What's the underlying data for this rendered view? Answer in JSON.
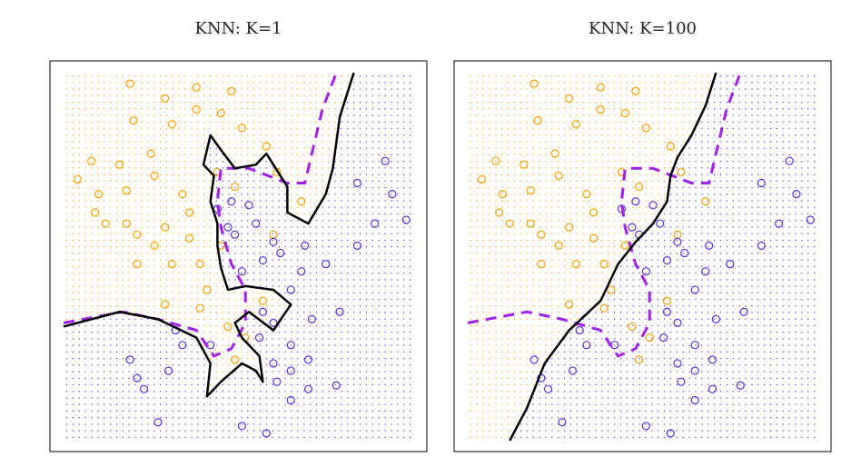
{
  "chart_data": [
    {
      "type": "scatter",
      "title": "KNN: K=1",
      "xlim": [
        0,
        100
      ],
      "ylim": [
        0,
        100
      ],
      "series": [
        {
          "color": "#f5a000",
          "x": [
            19,
            29,
            38,
            48,
            20,
            31,
            38,
            45,
            8,
            16,
            25,
            4,
            10,
            18,
            26,
            34,
            12,
            21,
            26,
            36,
            21,
            31,
            39,
            41,
            29,
            47,
            49,
            57,
            61,
            68,
            51,
            58,
            44,
            9,
            18,
            36,
            45,
            29,
            39,
            52,
            60,
            49
          ],
          "y": [
            97,
            93,
            96,
            95,
            87,
            86,
            90,
            89,
            76,
            75,
            78,
            71,
            67,
            68,
            72,
            67,
            59,
            56,
            53,
            55,
            48,
            48,
            48,
            41,
            37,
            31,
            22,
            38,
            73,
            65,
            85,
            80,
            73,
            62,
            59,
            62,
            53,
            58,
            36,
            28,
            56,
            69
          ]
        },
        {
          "color": "#5a2ee6",
          "x": [
            92,
            84,
            94,
            98,
            89,
            84,
            75,
            79,
            71,
            68,
            65,
            60,
            55,
            51,
            57,
            62,
            69,
            48,
            53,
            44,
            60,
            65,
            60,
            65,
            70,
            19,
            23,
            27,
            51,
            58,
            30,
            34,
            78,
            49,
            47,
            61,
            65,
            57,
            56,
            32,
            21,
            42,
            70
          ],
          "y": [
            76,
            70,
            67,
            60,
            59,
            53,
            48,
            35,
            33,
            46,
            41,
            54,
            59,
            46,
            49,
            51,
            53,
            65,
            64,
            63,
            32,
            26,
            21,
            19,
            22,
            22,
            14,
            5,
            4,
            2,
            19,
            26,
            15,
            56,
            58,
            16,
            11,
            35,
            28,
            30,
            17,
            26,
            14
          ]
        }
      ],
      "boundary": {
        "color": "#000000",
        "x": [
          0,
          16,
          27,
          38,
          42,
          41,
          45,
          51,
          55,
          57,
          56,
          51,
          49,
          53,
          60,
          65,
          60,
          52,
          47,
          45,
          44,
          44,
          42,
          43,
          40,
          42,
          45,
          49,
          55,
          58,
          64,
          64,
          70,
          75,
          77,
          79,
          83
        ],
        "y": [
          31,
          35,
          33,
          28,
          21,
          12,
          16,
          21,
          19,
          16,
          23,
          28,
          32,
          35,
          30,
          37,
          41,
          42,
          41,
          47,
          53,
          59,
          65,
          72,
          75,
          83,
          79,
          74,
          75,
          78,
          69,
          62,
          59,
          67,
          74,
          88,
          100
        ]
      },
      "bayes_boundary": {
        "color": "#a020f0",
        "x": [
          0,
          17,
          27,
          38,
          43,
          48,
          52,
          52,
          48,
          45,
          44,
          45,
          53,
          64,
          69,
          71,
          74,
          78
        ],
        "y": [
          32,
          35,
          33,
          30,
          23,
          25,
          32,
          41,
          48,
          58,
          65,
          74,
          74,
          70,
          70,
          78,
          90,
          100
        ]
      }
    },
    {
      "type": "scatter",
      "title": "KNN: K=100",
      "xlim": [
        0,
        100
      ],
      "ylim": [
        0,
        100
      ],
      "series": [
        {
          "color": "#f5a000",
          "x": [
            19,
            29,
            38,
            48,
            20,
            31,
            38,
            45,
            8,
            16,
            25,
            4,
            10,
            18,
            26,
            34,
            12,
            21,
            26,
            36,
            21,
            31,
            39,
            41,
            29,
            47,
            49,
            57,
            61,
            68,
            51,
            58,
            44,
            9,
            18,
            36,
            45,
            29,
            39,
            52,
            60,
            49
          ],
          "y": [
            97,
            93,
            96,
            95,
            87,
            86,
            90,
            89,
            76,
            75,
            78,
            71,
            67,
            68,
            72,
            67,
            59,
            56,
            53,
            55,
            48,
            48,
            48,
            41,
            37,
            31,
            22,
            38,
            73,
            65,
            85,
            80,
            73,
            62,
            59,
            62,
            53,
            58,
            36,
            28,
            56,
            69
          ]
        },
        {
          "color": "#5a2ee6",
          "x": [
            92,
            84,
            94,
            98,
            89,
            84,
            75,
            79,
            71,
            68,
            65,
            60,
            55,
            51,
            57,
            62,
            69,
            48,
            53,
            44,
            60,
            65,
            60,
            65,
            70,
            19,
            23,
            27,
            51,
            58,
            30,
            34,
            78,
            49,
            47,
            61,
            65,
            57,
            56,
            32,
            21,
            42,
            70
          ],
          "y": [
            76,
            70,
            67,
            60,
            59,
            53,
            48,
            35,
            33,
            46,
            41,
            54,
            59,
            46,
            49,
            51,
            53,
            65,
            64,
            63,
            32,
            26,
            21,
            19,
            22,
            22,
            14,
            5,
            4,
            2,
            19,
            26,
            15,
            56,
            58,
            16,
            11,
            35,
            28,
            30,
            17,
            26,
            14
          ]
        }
      ],
      "boundary": {
        "color": "#000000",
        "x": [
          12,
          17,
          22,
          29,
          38,
          43,
          48,
          53,
          57,
          58,
          60,
          64,
          68,
          71
        ],
        "y": [
          0,
          9,
          21,
          30,
          38,
          48,
          54,
          59,
          65,
          72,
          77,
          83,
          91,
          100
        ]
      },
      "bayes_boundary": {
        "color": "#a020f0",
        "x": [
          0,
          17,
          27,
          38,
          43,
          48,
          52,
          52,
          48,
          45,
          44,
          45,
          53,
          64,
          69,
          71,
          74,
          78
        ],
        "y": [
          32,
          35,
          33,
          30,
          23,
          25,
          32,
          41,
          48,
          58,
          65,
          74,
          74,
          70,
          70,
          78,
          90,
          100
        ]
      }
    }
  ]
}
